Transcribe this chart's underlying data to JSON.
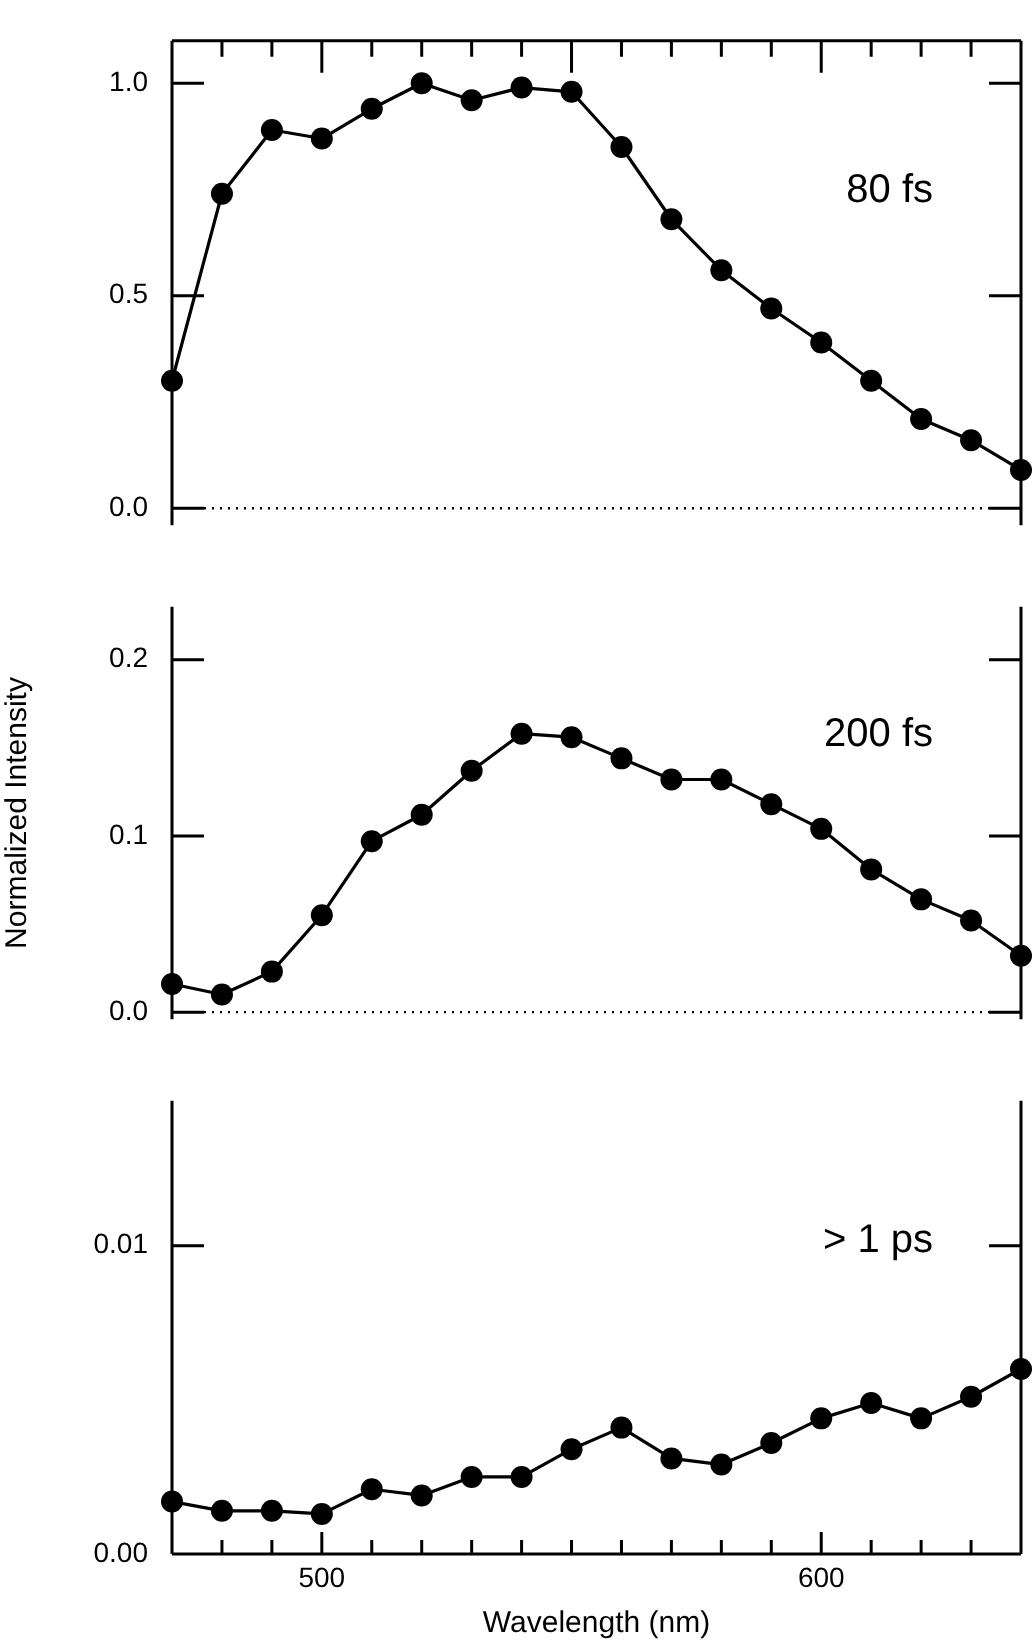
{
  "chart_data": [
    {
      "type": "line",
      "x": [
        470,
        480,
        490,
        500,
        510,
        520,
        530,
        540,
        550,
        560,
        570,
        580,
        590,
        600,
        610,
        620,
        630,
        640
      ],
      "series": [
        {
          "color": "#000000",
          "values": [
            0.3,
            0.74,
            0.89,
            0.87,
            0.94,
            1.0,
            0.96,
            0.99,
            0.98,
            0.85,
            0.68,
            0.56,
            0.47,
            0.39,
            0.3,
            0.21,
            0.16,
            0.09
          ]
        }
      ],
      "xlim": [
        470,
        640
      ],
      "xticks": [
        {
          "value": 470,
          "label": null
        },
        {
          "value": 480,
          "label": null
        },
        {
          "value": 490,
          "label": null
        },
        {
          "value": 500,
          "label": null
        },
        {
          "value": 510,
          "label": null
        },
        {
          "value": 520,
          "label": null
        },
        {
          "value": 530,
          "label": null
        },
        {
          "value": 540,
          "label": null
        },
        {
          "value": 550,
          "label": null
        },
        {
          "value": 560,
          "label": null
        },
        {
          "value": 570,
          "label": null
        },
        {
          "value": 580,
          "label": null
        },
        {
          "value": 590,
          "label": null
        },
        {
          "value": 600,
          "label": null
        },
        {
          "value": 610,
          "label": null
        },
        {
          "value": 620,
          "label": null
        },
        {
          "value": 630,
          "label": null
        },
        {
          "value": 640,
          "label": null
        }
      ],
      "ylim": [
        -0.04,
        1.1
      ],
      "yticks": [
        {
          "value": 0,
          "label": "0.0"
        },
        {
          "value": 0.5,
          "label": "0.5"
        },
        {
          "value": 1,
          "label": "1.0"
        }
      ],
      "tick_labels": "y",
      "ref_lines": [
        {
          "axis": "y",
          "value": 0,
          "line_style": "dotted",
          "color": "#000000"
        }
      ],
      "annotations": [
        "80 fs"
      ],
      "marker": "circle",
      "line_style": "solid",
      "grid": false,
      "legend": false
    },
    {
      "type": "line",
      "x": [
        470,
        480,
        490,
        500,
        510,
        520,
        530,
        540,
        550,
        560,
        570,
        580,
        590,
        600,
        610,
        620,
        630,
        640
      ],
      "series": [
        {
          "color": "#000000",
          "values": [
            0.016,
            0.01,
            0.023,
            0.055,
            0.097,
            0.112,
            0.137,
            0.158,
            0.156,
            0.144,
            0.132,
            0.132,
            0.118,
            0.104,
            0.081,
            0.064,
            0.052,
            0.032
          ]
        }
      ],
      "xlim": [
        470,
        640
      ],
      "ylim": [
        -0.004,
        0.23
      ],
      "yticks": [
        {
          "value": 0,
          "label": "0.0"
        },
        {
          "value": 0.1,
          "label": "0.1"
        },
        {
          "value": 0.2,
          "label": "0.2"
        }
      ],
      "ylabel": "Normalized Intensity",
      "tick_labels": "y",
      "ref_lines": [
        {
          "axis": "y",
          "value": 0,
          "line_style": "dotted",
          "color": "#000000"
        }
      ],
      "annotations": [
        "200 fs"
      ],
      "marker": "circle",
      "line_style": "solid",
      "grid": false,
      "legend": false
    },
    {
      "type": "line",
      "x": [
        470,
        480,
        490,
        500,
        510,
        520,
        530,
        540,
        550,
        560,
        570,
        580,
        590,
        600,
        610,
        620,
        630,
        640
      ],
      "series": [
        {
          "color": "#000000",
          "values": [
            0.0017,
            0.0014,
            0.0014,
            0.0013,
            0.0021,
            0.0019,
            0.0025,
            0.0025,
            0.0034,
            0.0041,
            0.0031,
            0.0029,
            0.0036,
            0.0044,
            0.0049,
            0.0044,
            0.0051,
            0.006
          ]
        }
      ],
      "xlim": [
        470,
        640
      ],
      "xticks": [
        {
          "value": 470,
          "label": null
        },
        {
          "value": 480,
          "label": null
        },
        {
          "value": 490,
          "label": null
        },
        500,
        {
          "value": 510,
          "label": null
        },
        {
          "value": 520,
          "label": null
        },
        {
          "value": 530,
          "label": null
        },
        {
          "value": 540,
          "label": null
        },
        {
          "value": 550,
          "label": null
        },
        {
          "value": 560,
          "label": null
        },
        {
          "value": 570,
          "label": null
        },
        {
          "value": 580,
          "label": null
        },
        {
          "value": 590,
          "label": null
        },
        600,
        {
          "value": 610,
          "label": null
        },
        {
          "value": 620,
          "label": null
        },
        {
          "value": 630,
          "label": null
        },
        {
          "value": 640,
          "label": null
        }
      ],
      "ylim": [
        0,
        0.0147
      ],
      "yticks": [
        {
          "value": 0,
          "label": "0.00"
        },
        {
          "value": 0.01,
          "label": "0.01"
        }
      ],
      "xlabel": "Wavelength (nm)",
      "annotations": [
        "> 1 ps"
      ],
      "marker": "circle",
      "line_style": "solid",
      "grid": false,
      "legend": false
    }
  ]
}
